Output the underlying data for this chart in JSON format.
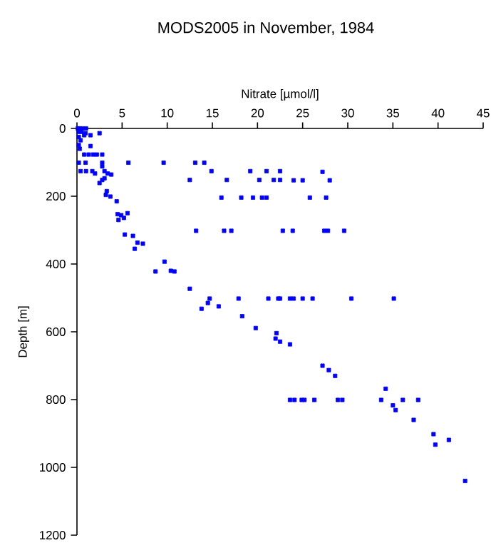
{
  "chart_data": {
    "type": "scatter",
    "title": "MODS2005 in November, 1984",
    "xlabel": "Nitrate [µmol/l]",
    "ylabel": "Depth [m]",
    "xlim": [
      0,
      45
    ],
    "ylim": [
      1200,
      0
    ],
    "xticks": [
      0,
      5,
      10,
      15,
      20,
      25,
      30,
      35,
      40,
      45
    ],
    "yticks": [
      0,
      200,
      400,
      600,
      800,
      1000,
      1200
    ],
    "marker": "square",
    "grid": false,
    "color": "#0000ff",
    "x": [
      0.1,
      0.3,
      0.6,
      1.0,
      0.2,
      0.5,
      0.95,
      2.5,
      0.8,
      0.2,
      1.5,
      0.4,
      0.2,
      1.5,
      0.3,
      0.8,
      1.3,
      1.8,
      2.2,
      2.8,
      0.2,
      0.95,
      2.8,
      5.7,
      9.6,
      13.1,
      14.1,
      2.8,
      0.4,
      1.0,
      1.7,
      2.0,
      3.05,
      3.4,
      3.8,
      14.9,
      19.2,
      21.0,
      22.5,
      27.2,
      3.05,
      2.8,
      2.5,
      12.5,
      16.6,
      20.2,
      21.8,
      22.5,
      24.0,
      25.0,
      28.0,
      3.3,
      3.2,
      3.7,
      4.4,
      16.0,
      18.2,
      19.5,
      20.5,
      21.0,
      25.8,
      27.6,
      5.6,
      4.5,
      4.9,
      4.6,
      5.2,
      13.2,
      16.3,
      17.1,
      22.8,
      23.9,
      27.4,
      27.8,
      29.6,
      5.3,
      6.2,
      6.7,
      7.3,
      6.4,
      9.7,
      8.7,
      10.4,
      10.8,
      12.5,
      14.7,
      14.5,
      13.8,
      15.7,
      17.9,
      21.2,
      22.3,
      22.5,
      23.6,
      24.0,
      25.0,
      26.1,
      30.4,
      35.1,
      18.3,
      19.8,
      22.1,
      22.0,
      22.5,
      23.6,
      27.2,
      27.9,
      28.6,
      34.2,
      23.6,
      24.1,
      24.9,
      25.2,
      26.3,
      28.9,
      29.4,
      33.7,
      36.1,
      37.8,
      35.0,
      35.3,
      37.3,
      39.5,
      39.7,
      41.2,
      43.0
    ],
    "values": [
      0,
      0,
      0,
      0,
      10,
      10,
      14,
      14,
      20,
      25,
      20,
      35,
      49,
      52,
      60,
      77,
      77,
      77,
      77,
      77,
      101,
      101,
      101,
      101,
      101,
      101,
      101,
      112,
      126,
      126,
      126,
      133,
      126,
      133,
      136,
      126,
      126,
      126,
      126,
      128,
      147,
      152,
      161,
      152,
      152,
      152,
      152,
      152,
      153,
      153,
      153,
      185,
      196,
      201,
      215,
      204,
      204,
      204,
      204,
      204,
      204,
      204,
      250,
      253,
      256,
      270,
      264,
      302,
      302,
      302,
      302,
      302,
      302,
      302,
      302,
      313,
      317,
      337,
      340,
      355,
      393,
      422,
      420,
      422,
      473,
      502,
      515,
      532,
      525,
      502,
      502,
      502,
      502,
      502,
      502,
      502,
      502,
      502,
      502,
      554,
      589,
      604,
      620,
      629,
      637,
      700,
      713,
      730,
      768,
      801,
      801,
      801,
      801,
      801,
      801,
      801,
      801,
      801,
      801,
      817,
      831,
      860,
      902,
      933,
      919,
      1040
    ]
  }
}
